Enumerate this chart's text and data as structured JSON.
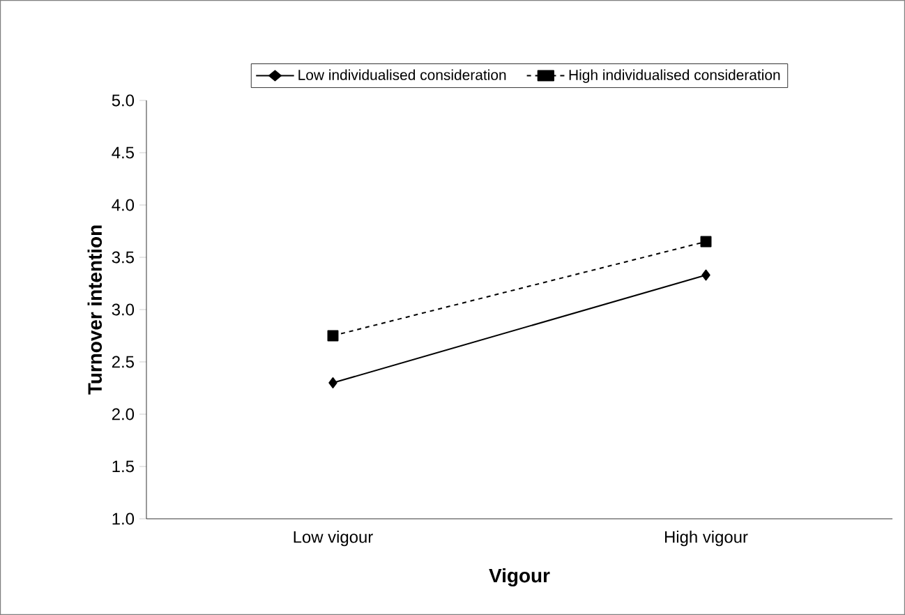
{
  "chart_data": {
    "type": "line",
    "xlabel": "Vigour",
    "ylabel": "Turnover intention",
    "categories": [
      "Low vigour",
      "High vigour"
    ],
    "series": [
      {
        "name": "Low individualised consideration",
        "color": "#000000",
        "values": [
          2.3,
          3.33
        ],
        "marker": "diamond",
        "line_style": "solid"
      },
      {
        "name": "High individualised consideration",
        "color": "#000000",
        "values": [
          2.75,
          3.65
        ],
        "marker": "square",
        "line_style": "dashed"
      }
    ],
    "ylim": [
      1.0,
      5.0
    ],
    "yticks": [
      {
        "value": 1.0,
        "label": "1.0"
      },
      {
        "value": 1.5,
        "label": "1.5"
      },
      {
        "value": 2.0,
        "label": "2.0"
      },
      {
        "value": 2.5,
        "label": "2.5"
      },
      {
        "value": 3.0,
        "label": "3.0"
      },
      {
        "value": 3.5,
        "label": "3.5"
      },
      {
        "value": 4.0,
        "label": "4.0"
      },
      {
        "value": 4.5,
        "label": "4.5"
      },
      {
        "value": 5.0,
        "label": "5.0"
      }
    ],
    "legend": "top",
    "grid": false
  }
}
